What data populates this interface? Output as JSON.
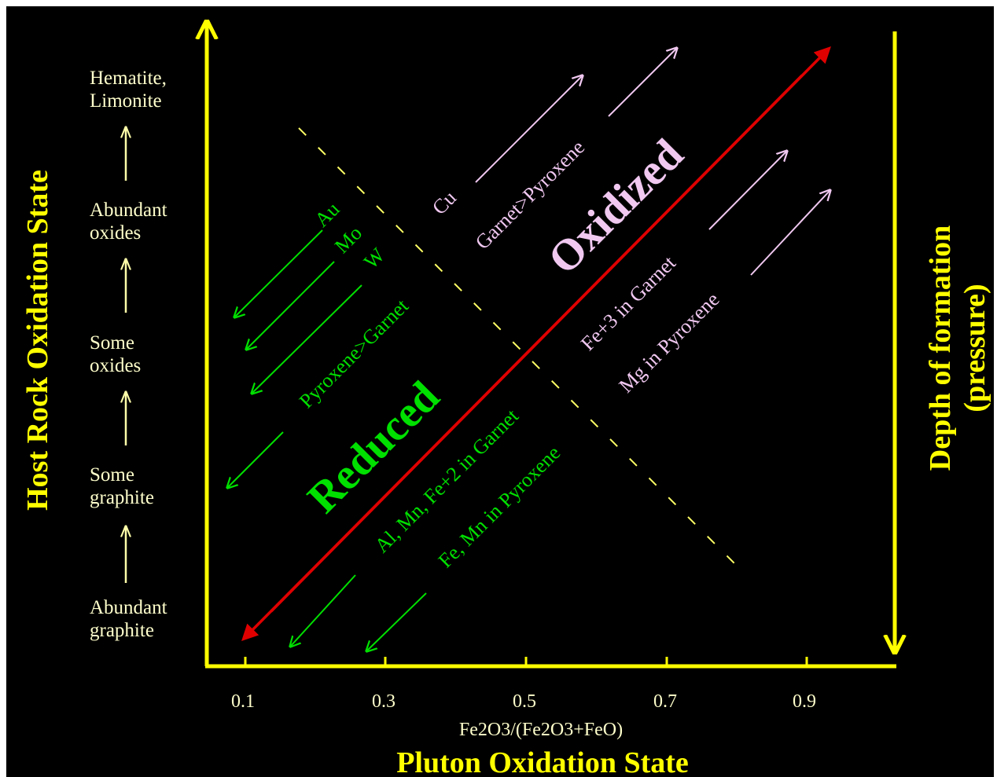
{
  "colors": {
    "background": "#000000",
    "axis": "#ffff00",
    "reduced": "#00e000",
    "oxidized": "#f0c8f0",
    "red_arrow": "#e00000",
    "pale_yellow": "#ffffcc"
  },
  "axes": {
    "x_title": "Pluton Oxidation State",
    "x_subtitle": "Fe2O3/(Fe2O3+FeO)",
    "x_ticks": [
      "0.1",
      "0.3",
      "0.5",
      "0.7",
      "0.9"
    ],
    "y_title": "Host Rock Oxidation State",
    "y_levels": [
      {
        "line1": "Hematite,",
        "line2": "Limonite"
      },
      {
        "line1": "Abundant",
        "line2": "oxides"
      },
      {
        "line1": "Some",
        "line2": "oxides"
      },
      {
        "line1": "Some",
        "line2": "graphite"
      },
      {
        "line1": "Abundant",
        "line2": "graphite"
      }
    ],
    "right_title_line1": "Depth of formation",
    "right_title_line2": "(pressure)"
  },
  "zones": {
    "reduced": "Reduced",
    "oxidized": "Oxidized"
  },
  "reduced_labels": {
    "au": "Au",
    "mo": "Mo",
    "w": "W",
    "pyroxene_garnet": "Pyroxene>Garnet",
    "al_mn_fe": "Al, Mn, Fe+2  in Garnet",
    "fe_mn": "Fe, Mn in Pyroxene"
  },
  "oxidized_labels": {
    "cu": "Cu",
    "garnet_pyroxene": "Garnet>Pyroxene",
    "fe3": "Fe+3  in Garnet",
    "mg": "Mg in Pyroxene"
  }
}
